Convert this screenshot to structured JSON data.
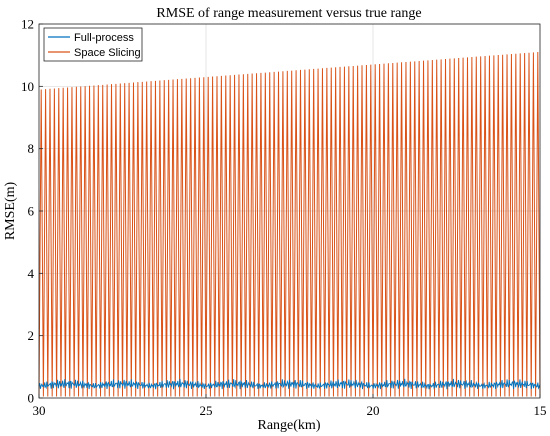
{
  "colors": {
    "full_process": "#0072BD",
    "space_slicing": "#D95319",
    "grid": "#d9d9d9",
    "axes": "#262626"
  },
  "chart_data": {
    "type": "line",
    "title": "RMSE of range measurement versus true range",
    "xlabel": "Range(km)",
    "ylabel": "RMSE(m)",
    "xlim": [
      30,
      15
    ],
    "x_reversed": true,
    "ylim": [
      0,
      12
    ],
    "x_ticks": [
      30,
      25,
      20,
      15
    ],
    "y_ticks": [
      0,
      2,
      4,
      6,
      8,
      10,
      12
    ],
    "grid": true,
    "legend_position": "top-left",
    "series": [
      {
        "name": "Full-process",
        "description_values": {
          "min": 0.1,
          "max": 0.65,
          "typical_mean": 0.4
        },
        "x_start": 30,
        "x_end": 15,
        "envelope_low": 0.1,
        "envelope_high": 0.62
      },
      {
        "name": "Space Slicing",
        "x_start": 30,
        "x_end": 15,
        "num_cycles": 114,
        "min_value": 0.05,
        "peak_at_x30": 9.9,
        "peak_at_x15": 11.1
      }
    ]
  }
}
